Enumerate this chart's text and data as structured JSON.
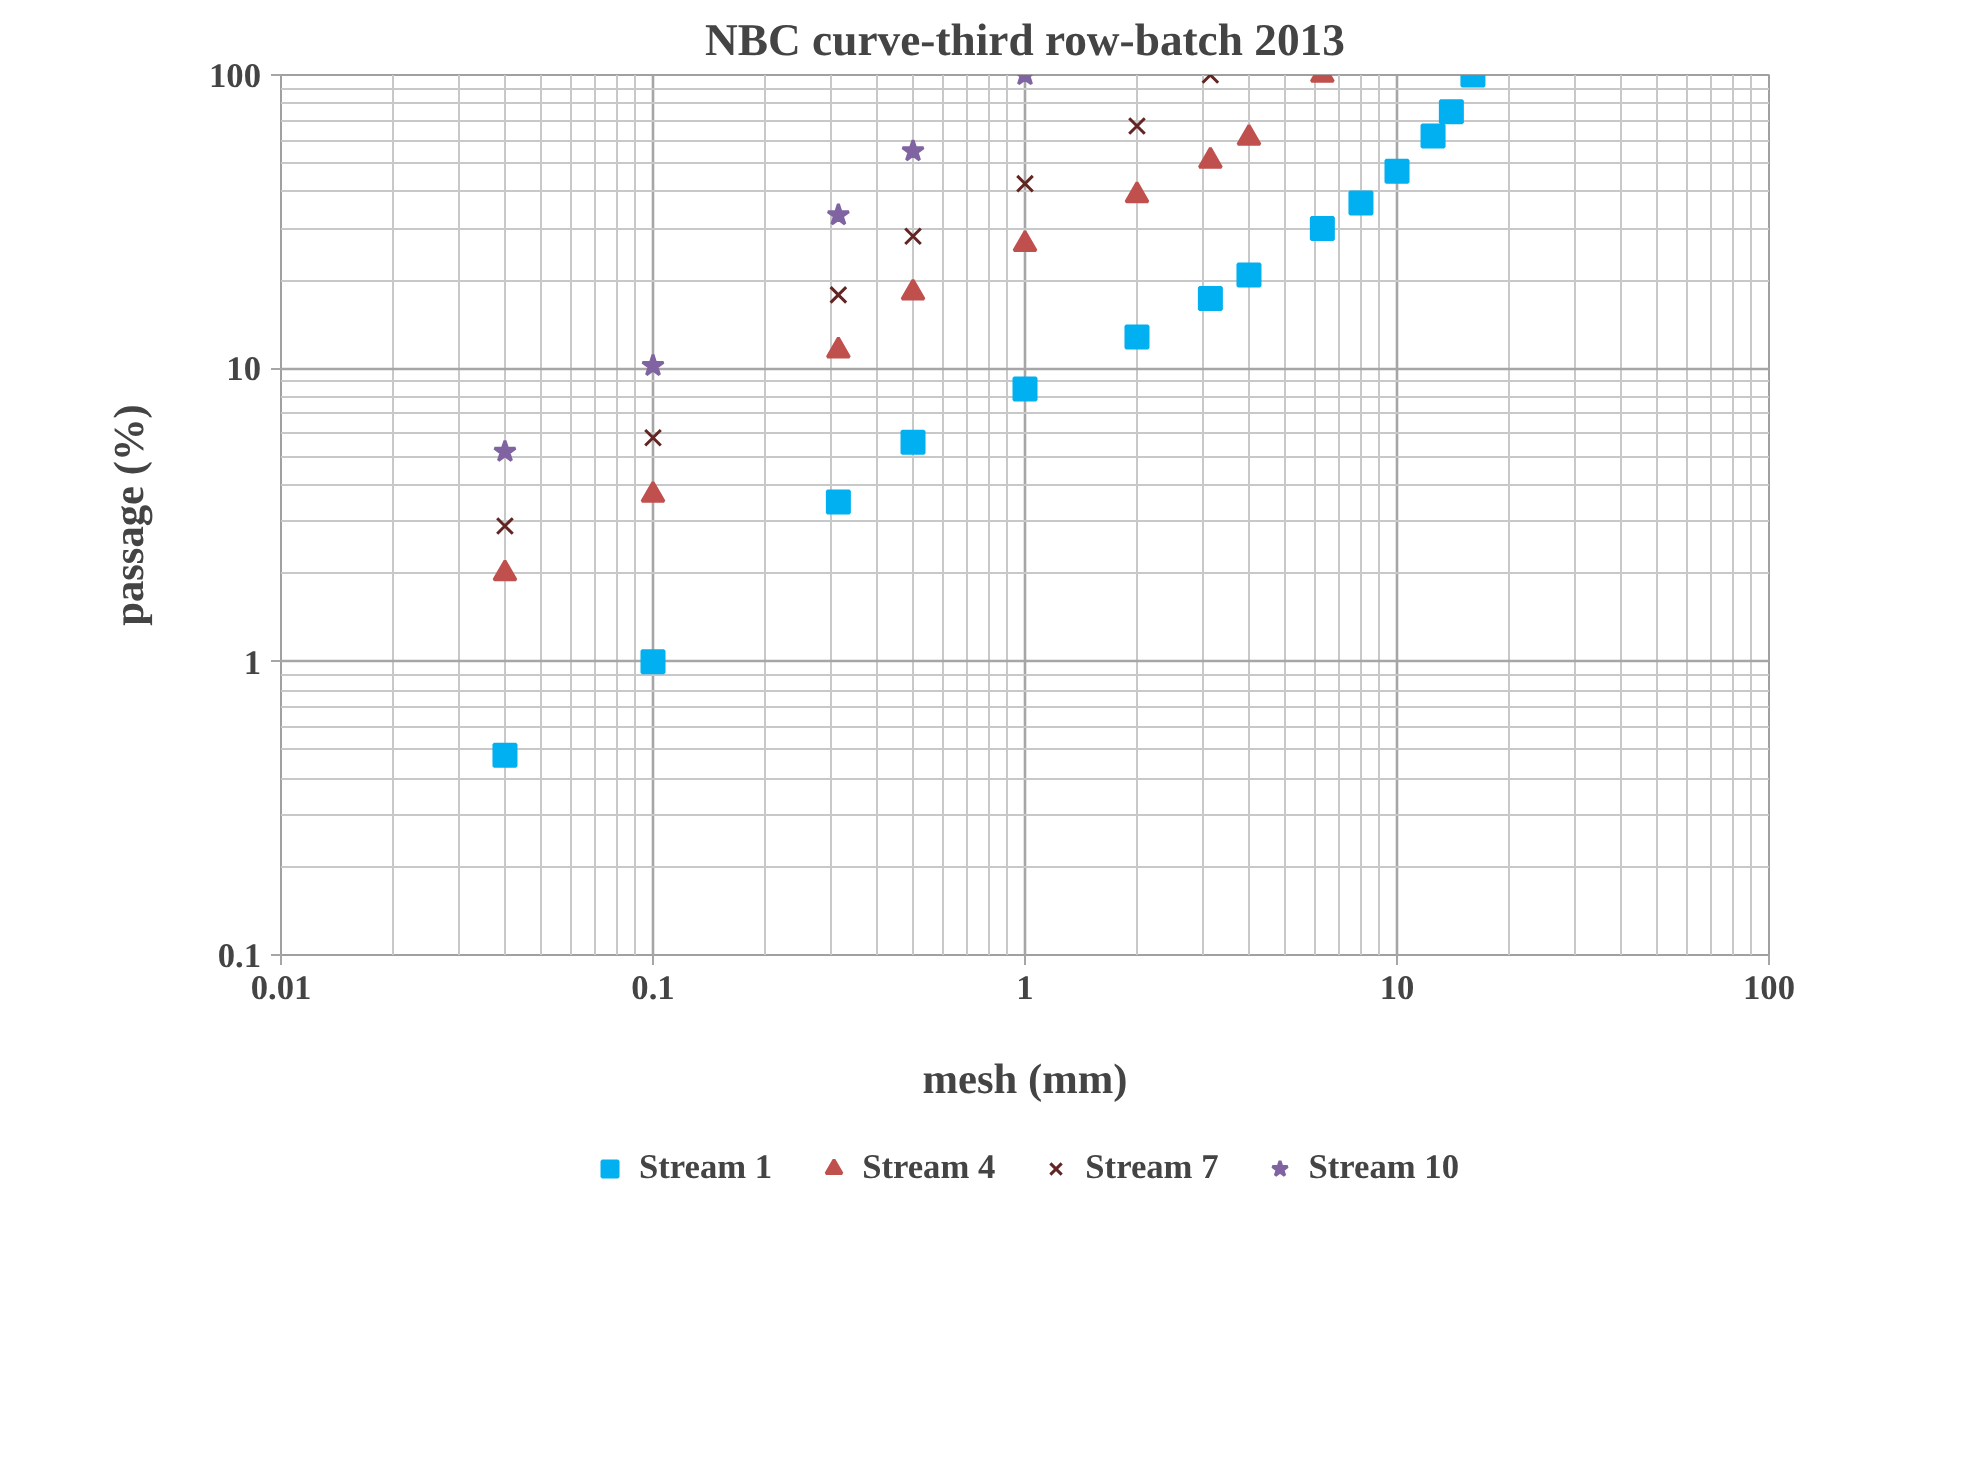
{
  "chart_data": {
    "type": "scatter",
    "title": "NBC curve-third row-batch 2013",
    "xlabel": "mesh (mm)",
    "ylabel": "passage (%)",
    "log": "xy",
    "xlim": [
      0.01,
      100
    ],
    "ylim": [
      0.1,
      100
    ],
    "xticks": [
      0.01,
      0.1,
      1,
      10,
      100
    ],
    "yticks": [
      0.1,
      1,
      10,
      100
    ],
    "grid": true,
    "legend": "bottom",
    "series": [
      {
        "name": "Stream 1",
        "color": "#00b0f0",
        "marker": "square",
        "x": [
          0.04,
          0.1,
          0.315,
          0.5,
          1,
          2,
          3.15,
          4,
          6.3,
          8,
          10,
          12.5,
          14,
          16
        ],
        "values": [
          0.48,
          1.0,
          3.5,
          5.6,
          8.5,
          12.8,
          17.3,
          20.8,
          30,
          36.6,
          47,
          62,
          75,
          100
        ]
      },
      {
        "name": "Stream 4",
        "color": "#c0504d",
        "marker": "triangle",
        "x": [
          0.04,
          0.1,
          0.315,
          0.5,
          1,
          2,
          3.15,
          4,
          6.3
        ],
        "values": [
          2.0,
          3.7,
          11.5,
          18.1,
          26.5,
          38.9,
          51,
          61,
          100
        ]
      },
      {
        "name": "Stream 7",
        "color": "#632523",
        "marker": "cross",
        "x": [
          0.04,
          0.1,
          0.315,
          0.5,
          1,
          2,
          3.15
        ],
        "values": [
          2.9,
          5.8,
          17.8,
          28.2,
          42.6,
          67,
          100
        ]
      },
      {
        "name": "Stream 10",
        "color": "#8064a2",
        "marker": "star",
        "x": [
          0.04,
          0.1,
          0.315,
          0.5,
          1
        ],
        "values": [
          5.2,
          10.2,
          33.3,
          55,
          100
        ]
      }
    ]
  }
}
